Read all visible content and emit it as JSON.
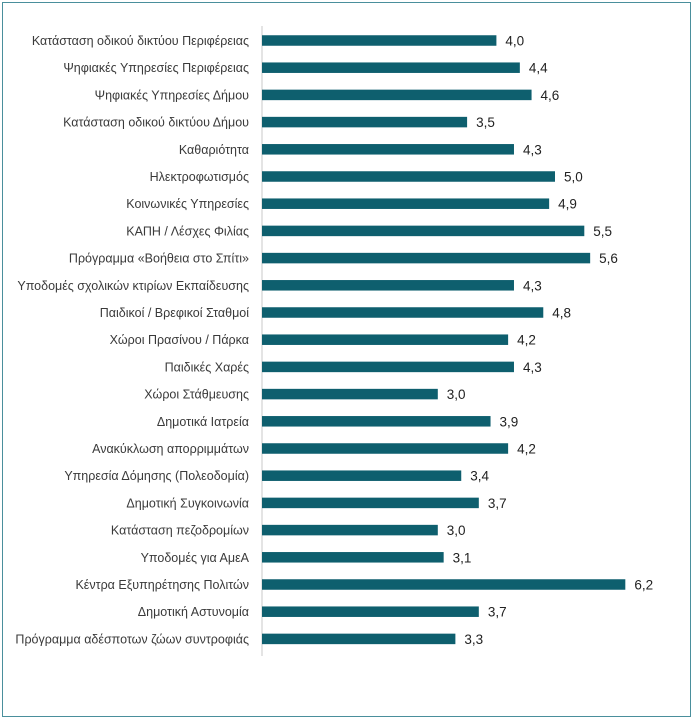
{
  "chart_data": {
    "type": "bar",
    "orientation": "horizontal",
    "title": "",
    "xlabel": "",
    "ylabel": "",
    "grid": false,
    "legend": "none",
    "bar_color": "#0e5f6e",
    "categories": [
      "Κατάσταση οδικού δικτύου  Περιφέρειας",
      "Ψηφιακές Υπηρεσίες Περιφέρειας",
      "Ψηφιακές Υπηρεσίες Δήμου",
      "Κατάσταση οδικού δικτύου  Δήμου",
      "Καθαριότητα",
      "Ηλεκτροφωτισμός",
      "Κοινωνικές Υπηρεσίες",
      "ΚΑΠΗ / Λέσχες Φιλίας",
      "Πρόγραμμα «Βοήθεια στο Σπίτι»",
      "Υποδομές σχολικών κτιρίων Εκπαίδευσης",
      "Παιδικοί / Βρεφικοί Σταθμοί",
      "Χώροι Πρασίνου / Πάρκα",
      "Παιδικές Χαρές",
      "Χώροι Στάθμευσης",
      "Δημοτικά Ιατρεία",
      "Ανακύκλωση απορριμμάτων",
      "Υπηρεσία Δόμησης (Πολεοδομία)",
      "Δημοτική Συγκοινωνία",
      "Κατάσταση πεζοδρομίων",
      "Υποδομές για ΑμεΑ",
      "Κέντρα Εξυπηρέτησης Πολιτών",
      "Δημοτική Αστυνομία",
      "Πρόγραμμα  αδέσποτων ζώων συντροφιάς"
    ],
    "values": [
      4.0,
      4.4,
      4.6,
      3.5,
      4.3,
      5.0,
      4.9,
      5.5,
      5.6,
      4.3,
      4.8,
      4.2,
      4.3,
      3.0,
      3.9,
      4.2,
      3.4,
      3.7,
      3.0,
      3.1,
      6.2,
      3.7,
      3.3
    ],
    "value_labels": [
      "4,0",
      "4,4",
      "4,6",
      "3,5",
      "4,3",
      "5,0",
      "4,9",
      "5,5",
      "5,6",
      "4,3",
      "4,8",
      "4,2",
      "4,3",
      "3,0",
      "3,9",
      "4,2",
      "3,4",
      "3,7",
      "3,0",
      "3,1",
      "6,2",
      "3,7",
      "3,3"
    ]
  }
}
